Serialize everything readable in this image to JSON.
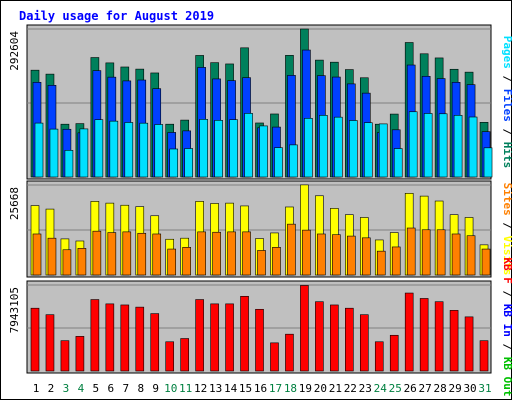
{
  "colors": {
    "background": "#c0c0c0",
    "title": "#0000ff",
    "hits": "#00805c",
    "files": "#0040ff",
    "pages": "#00e0ff",
    "visits": "#ffff00",
    "sites": "#ff8000",
    "kb_f": "#ff0000",
    "kb_in": "#0000ff",
    "kb_out": "#00c000",
    "weekend_label": "#008040",
    "weekday_label": "#000000"
  },
  "chart_data": {
    "type": "bar",
    "title": "Daily usage for August 2019",
    "days": [
      "1",
      "2",
      "3",
      "4",
      "5",
      "6",
      "7",
      "8",
      "9",
      "10",
      "11",
      "12",
      "13",
      "14",
      "15",
      "16",
      "17",
      "18",
      "19",
      "20",
      "21",
      "22",
      "23",
      "24",
      "25",
      "26",
      "27",
      "28",
      "29",
      "30",
      "31"
    ],
    "weekend_days": [
      "3",
      "4",
      "10",
      "11",
      "17",
      "18",
      "24",
      "25",
      "31"
    ],
    "panels": [
      {
        "y_tick_label": "292604",
        "ymax": 292604,
        "series": [
          {
            "name": "Hits",
            "color": "#00805c",
            "values": [
              211200,
              203400,
              104400,
              105600,
              236200,
              225600,
              217500,
              213300,
              205700,
              104400,
              112500,
              240300,
              226100,
              223500,
              255400,
              106800,
              124600,
              240500,
              292600,
              231100,
              227000,
              212400,
              196200,
              104400,
              124400,
              265900,
              243600,
              235400,
              213000,
              207300,
              108100
            ]
          },
          {
            "name": "Files",
            "color": "#0040ff",
            "values": [
              187200,
              181300,
              94400,
              87300,
              210300,
              197400,
              190000,
              191700,
              174600,
              88100,
              91200,
              216700,
              193900,
              190600,
              196400,
              97300,
              98700,
              200900,
              251000,
              200400,
              197600,
              184100,
              165800,
              87800,
              93300,
              221400,
              199100,
              194600,
              187200,
              182600,
              89600
            ]
          },
          {
            "name": "Pages",
            "color": "#00e0ff",
            "values": [
              106600,
              94700,
              52700,
              95100,
              113300,
              110400,
              107800,
              106400,
              103800,
              55400,
              56300,
              114000,
              112000,
              113300,
              125800,
              101000,
              58000,
              63500,
              116000,
              121900,
              118300,
              111700,
              107400,
              105000,
              56200,
              129000,
              125600,
              125000,
              121900,
              118600,
              57700
            ]
          }
        ]
      },
      {
        "y_tick_label": "25668",
        "ymax": 25668,
        "series": [
          {
            "name": "Visits",
            "color": "#ffff00",
            "values": [
              19800,
              18800,
              10300,
              9700,
              21000,
              20500,
              19900,
              19500,
              16900,
              10200,
              10500,
              21000,
              20400,
              20500,
              19700,
              10400,
              12000,
              19400,
              25700,
              22600,
              19000,
              17200,
              16400,
              10000,
              12100,
              23300,
              22500,
              21100,
              17200,
              16400,
              8600
            ]
          },
          {
            "name": "Sites",
            "color": "#ff8000",
            "values": [
              11700,
              10500,
              7200,
              7600,
              12500,
              12100,
              12300,
              11900,
              11700,
              7400,
              7900,
              12300,
              12200,
              12300,
              12300,
              7000,
              7900,
              14500,
              12800,
              11700,
              11500,
              11100,
              10600,
              6800,
              8000,
              13400,
              12900,
              12900,
              11700,
              11200,
              7400
            ]
          }
        ]
      },
      {
        "y_tick_label": "7943105",
        "ymax": 7943105,
        "series": [
          {
            "name": "KB F",
            "color": "#ff0000",
            "values": [
              5800000,
              5200000,
              2800000,
              3200000,
              6600000,
              6200000,
              6100000,
              5900000,
              5300000,
              2700000,
              3000000,
              6600000,
              6200000,
              6200000,
              6900000,
              5700000,
              2600000,
              3400000,
              7900000,
              6400000,
              6100000,
              5800000,
              5200000,
              2700000,
              3300000,
              7200000,
              6700000,
              6400000,
              5600000,
              5000000,
              2800000
            ]
          }
        ]
      }
    ],
    "right_labels": [
      {
        "parts": [
          {
            "text": "Pages",
            "color": "#00e0ff"
          },
          {
            "text": " / ",
            "color": "#000000"
          },
          {
            "text": "Files",
            "color": "#0040ff"
          },
          {
            "text": " / ",
            "color": "#000000"
          },
          {
            "text": "Hits",
            "color": "#00805c"
          }
        ]
      },
      {
        "parts": [
          {
            "text": "Sites",
            "color": "#ff8000"
          },
          {
            "text": " / ",
            "color": "#000000"
          },
          {
            "text": "Visits",
            "color": "#ffff00"
          }
        ]
      },
      {
        "parts": [
          {
            "text": "KB F",
            "color": "#ff0000"
          },
          {
            "text": " / ",
            "color": "#000000"
          },
          {
            "text": "KB In",
            "color": "#0000ff"
          },
          {
            "text": " / ",
            "color": "#000000"
          },
          {
            "text": "KB Out",
            "color": "#00c000"
          }
        ]
      }
    ]
  }
}
